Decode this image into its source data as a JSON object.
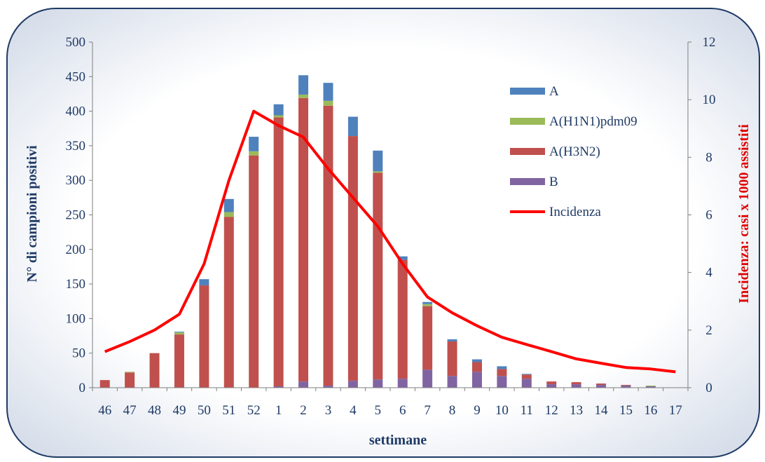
{
  "chart_data": {
    "type": "bar",
    "stacked": true,
    "xlabel": "settimane",
    "ylabel_left": "N° di campioni positivi",
    "ylabel_right": "Incidenza: casi x 1000 assistiti",
    "categories": [
      "46",
      "47",
      "48",
      "49",
      "50",
      "51",
      "52",
      "1",
      "2",
      "3",
      "4",
      "5",
      "6",
      "7",
      "8",
      "9",
      "10",
      "11",
      "12",
      "13",
      "14",
      "15",
      "16",
      "17"
    ],
    "ylim_left": [
      0,
      500
    ],
    "yticks_left": [
      "0",
      "50",
      "100",
      "150",
      "200",
      "250",
      "300",
      "350",
      "400",
      "450",
      "500"
    ],
    "ylim_right": [
      0,
      12
    ],
    "yticks_right": [
      "0",
      "2",
      "4",
      "6",
      "8",
      "10",
      "12"
    ],
    "legend_position": "top-right",
    "series": [
      {
        "name": "B",
        "color": "#8064a2",
        "values": [
          0,
          0,
          0,
          0,
          0,
          0,
          0,
          2,
          9,
          3,
          10,
          12,
          13,
          26,
          17,
          23,
          17,
          13,
          5,
          5,
          4,
          3,
          2,
          0
        ]
      },
      {
        "name": "A(H3N2)",
        "color": "#c0504d",
        "values": [
          11,
          22,
          50,
          77,
          148,
          247,
          336,
          389,
          410,
          405,
          354,
          299,
          172,
          92,
          50,
          14,
          10,
          6,
          4,
          3,
          2,
          1,
          0,
          0
        ]
      },
      {
        "name": "A(H1N1)pdm09",
        "color": "#9bbb59",
        "values": [
          0,
          1,
          0,
          3,
          0,
          7,
          6,
          3,
          5,
          7,
          0,
          2,
          0,
          3,
          0,
          0,
          0,
          0,
          0,
          0,
          0,
          0,
          1,
          0
        ]
      },
      {
        "name": "A",
        "color": "#4f81bd",
        "values": [
          0,
          0,
          0,
          1,
          9,
          19,
          21,
          16,
          28,
          26,
          28,
          30,
          5,
          3,
          3,
          4,
          4,
          1,
          0,
          0,
          0,
          0,
          0,
          0
        ]
      }
    ],
    "line": {
      "name": "Incidenza",
      "color": "#ff0000",
      "values": [
        1.25,
        1.6,
        2.0,
        2.55,
        4.3,
        7.2,
        9.6,
        9.1,
        8.7,
        7.6,
        6.6,
        5.6,
        4.3,
        3.15,
        2.6,
        2.15,
        1.75,
        1.5,
        1.25,
        1.0,
        0.85,
        0.7,
        0.65,
        0.55
      ]
    },
    "legend_order": [
      "A",
      "A(H1N1)pdm09",
      "A(H3N2)",
      "B",
      "Incidenza"
    ]
  }
}
